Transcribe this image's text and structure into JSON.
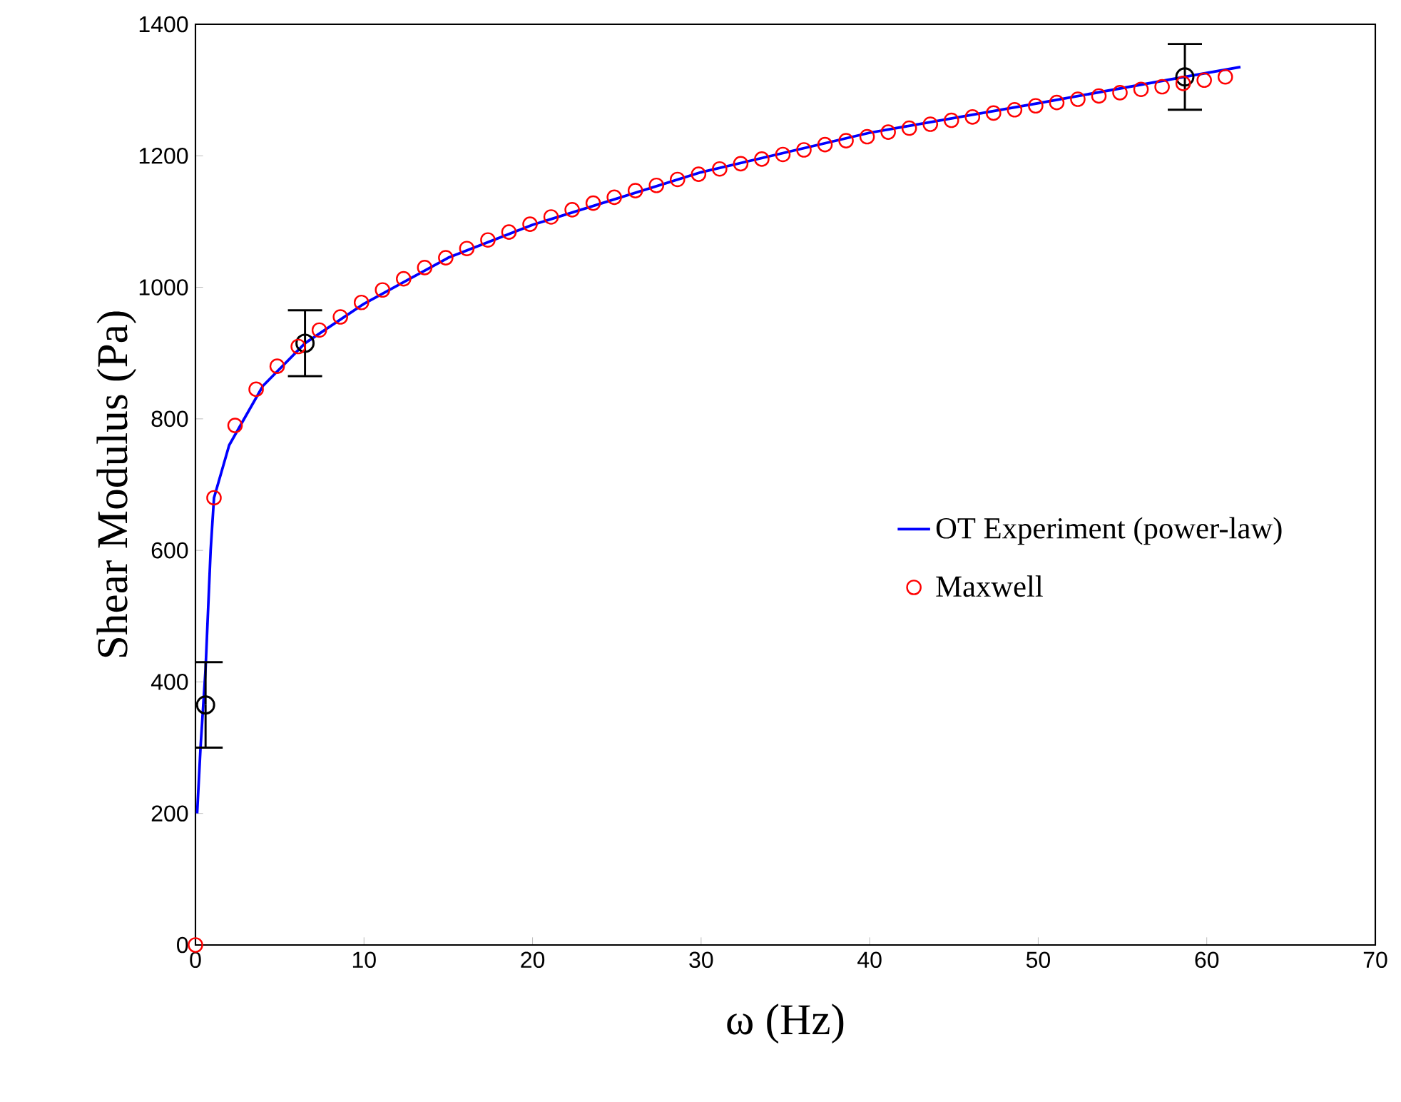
{
  "chart_data": {
    "type": "line",
    "xlabel": "ω (Hz)",
    "ylabel": "Shear Modulus (Pa)",
    "xlim": [
      0,
      70
    ],
    "ylim": [
      0,
      1400
    ],
    "xticks": [
      0,
      10,
      20,
      30,
      40,
      50,
      60,
      70
    ],
    "yticks": [
      0,
      200,
      400,
      600,
      800,
      1000,
      1200,
      1400
    ],
    "legend": "right",
    "series": [
      {
        "name": "OT Experiment (power-law)",
        "color": "#0000ff",
        "marker": "none",
        "x": [
          0.1,
          0.3,
          0.6,
          0.9,
          1.1,
          2,
          4,
          6.5,
          10,
          15,
          20,
          30,
          40,
          50,
          58.7,
          62
        ],
        "values": [
          200,
          300,
          420,
          600,
          680,
          760,
          850,
          915,
          975,
          1045,
          1095,
          1175,
          1235,
          1280,
          1320,
          1335
        ]
      },
      {
        "type": "scatter",
        "color": "#000000",
        "marker": "circle",
        "x": [
          0.6,
          6.5,
          58.7
        ],
        "values": [
          365,
          915,
          1320
        ],
        "errors": [
          65,
          50,
          50
        ]
      },
      {
        "name": "Maxwell",
        "type": "scatter",
        "color": "#ff0000",
        "marker": "circle",
        "x": [
          0,
          1.1,
          2.35,
          3.6,
          4.85,
          6.1,
          7.35,
          8.6,
          9.85,
          11.1,
          12.35,
          13.6,
          14.85,
          16.1,
          17.35,
          18.6,
          19.85,
          21.1,
          22.35,
          23.6,
          24.85,
          26.1,
          27.35,
          28.6,
          29.85,
          31.1,
          32.35,
          33.6,
          34.85,
          36.1,
          37.35,
          38.6,
          39.85,
          41.1,
          42.35,
          43.6,
          44.85,
          46.1,
          47.35,
          48.6,
          49.85,
          51.1,
          52.35,
          53.6,
          54.85,
          56.1,
          57.35,
          58.6,
          59.85,
          61.1
        ],
        "values": [
          0,
          680,
          790,
          845,
          880,
          910,
          935,
          955,
          977,
          996,
          1013,
          1030,
          1045,
          1059,
          1072,
          1084,
          1096,
          1107,
          1118,
          1128,
          1137,
          1147,
          1155,
          1164,
          1172,
          1180,
          1188,
          1195,
          1202,
          1209,
          1217,
          1223,
          1229,
          1236,
          1242,
          1248,
          1254,
          1259,
          1265,
          1270,
          1276,
          1281,
          1286,
          1291,
          1296,
          1301,
          1305,
          1310,
          1315,
          1320
        ]
      }
    ]
  }
}
